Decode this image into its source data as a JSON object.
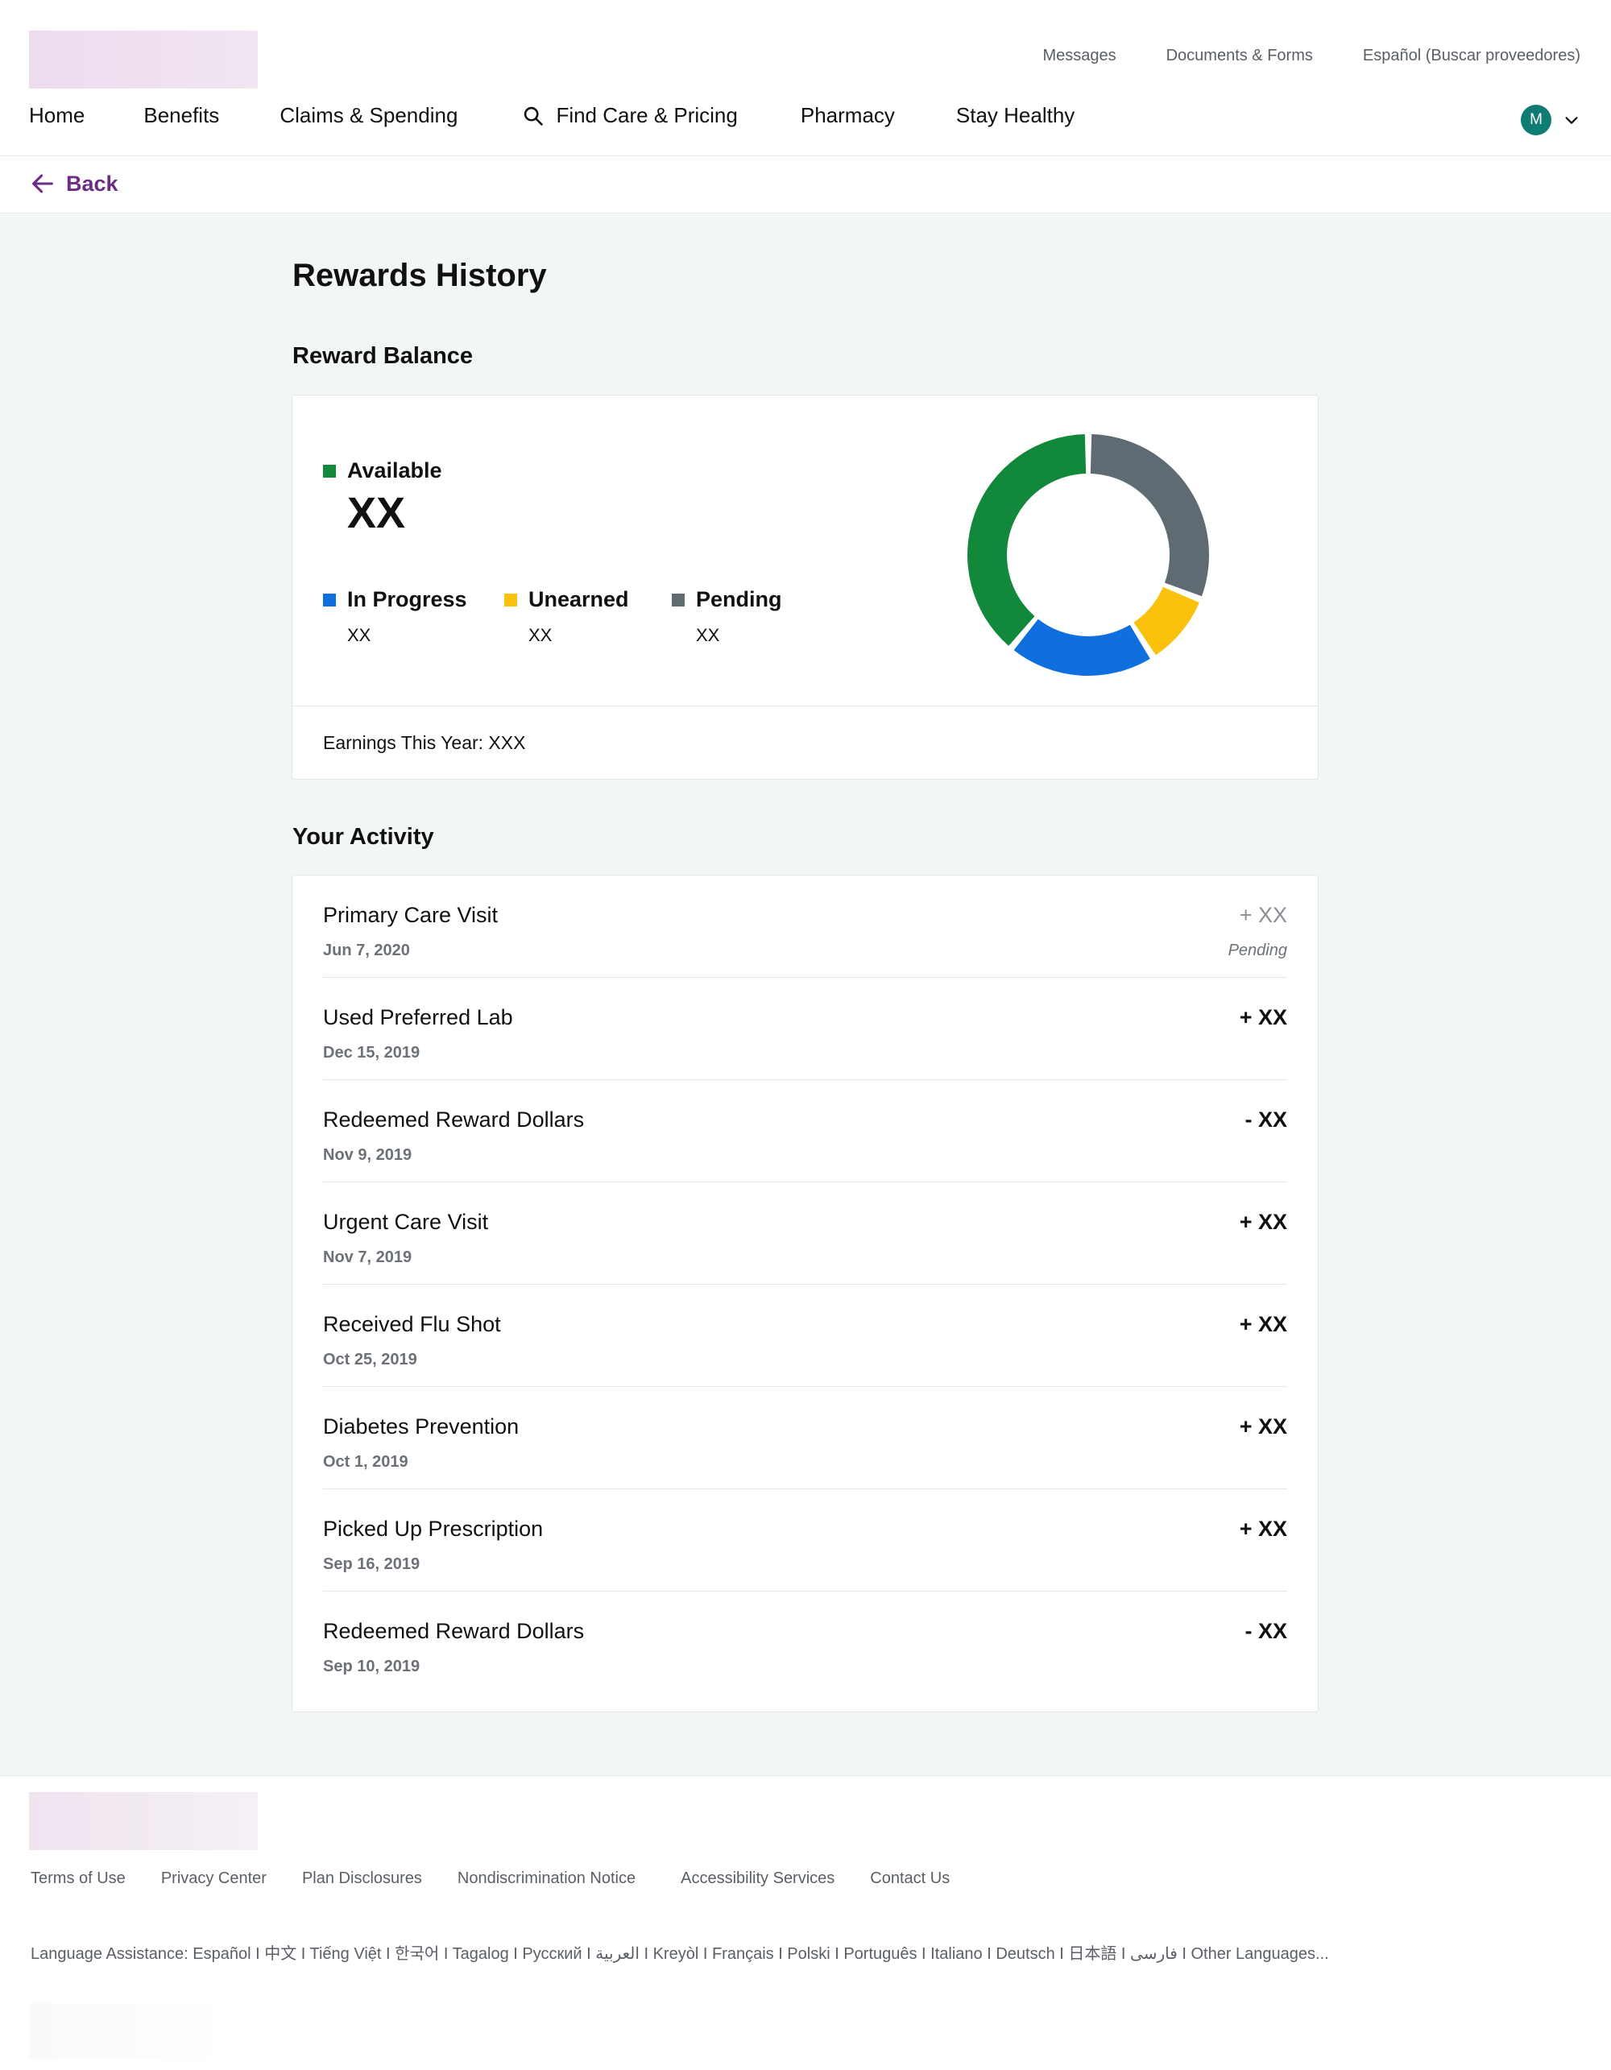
{
  "header": {
    "utility_links": [
      "Messages",
      "Documents & Forms",
      "Español (Buscar proveedores)"
    ],
    "nav": {
      "home": "Home",
      "benefits": "Benefits",
      "claims": "Claims & Spending",
      "find_care": "Find Care & Pricing",
      "pharmacy": "Pharmacy",
      "stay_healthy": "Stay Healthy"
    },
    "avatar_initial": "M"
  },
  "back_label": "Back",
  "page_title": "Rewards History",
  "balance": {
    "section_title": "Reward Balance",
    "available_label": "Available",
    "available_value": "XX",
    "in_progress_label": "In Progress",
    "in_progress_value": "XX",
    "unearned_label": "Unearned",
    "unearned_value": "XX",
    "pending_label": "Pending",
    "pending_value": "XX",
    "earnings": "Earnings This Year: XXX"
  },
  "colors": {
    "available": "#12883a",
    "in_progress": "#0f6fde",
    "unearned": "#fbc20d",
    "pending": "#5f6b72",
    "brand_purple": "#6b2d87",
    "avatar": "#0f7c74"
  },
  "donut_segments": [
    {
      "name": "Pending",
      "fraction": 0.31,
      "color": "#5f6b72"
    },
    {
      "name": "Unearned",
      "fraction": 0.1,
      "color": "#fbc20d"
    },
    {
      "name": "In Progress",
      "fraction": 0.2,
      "color": "#0f6fde"
    },
    {
      "name": "Available",
      "fraction": 0.39,
      "color": "#12883a"
    }
  ],
  "activity": {
    "section_title": "Your Activity",
    "items": [
      {
        "title": "Primary Care Visit",
        "date": "Jun 7, 2020",
        "amount": "+ XX",
        "status": "Pending"
      },
      {
        "title": "Used Preferred Lab",
        "date": "Dec 15, 2019",
        "amount": "+ XX"
      },
      {
        "title": "Redeemed Reward Dollars",
        "date": "Nov 9, 2019",
        "amount": "- XX"
      },
      {
        "title": "Urgent Care Visit",
        "date": "Nov 7, 2019",
        "amount": "+ XX"
      },
      {
        "title": "Received Flu Shot",
        "date": "Oct 25, 2019",
        "amount": "+ XX"
      },
      {
        "title": "Diabetes Prevention",
        "date": "Oct 1, 2019",
        "amount": "+ XX"
      },
      {
        "title": "Picked Up Prescription",
        "date": "Sep 16, 2019",
        "amount": "+ XX"
      },
      {
        "title": "Redeemed Reward Dollars",
        "date": "Sep 10, 2019",
        "amount": "- XX"
      }
    ]
  },
  "footer": {
    "links": [
      "Terms of Use",
      "Privacy Center",
      "Plan Disclosures",
      "Nondiscrimination Notice",
      "Accessibility Services",
      "Contact Us"
    ],
    "language_assistance": "Language Assistance: Español I 中文 I Tiếng Việt I 한국어 I Tagalog I Русский I العربية I Kreyòl I Français I Polski I Português I Italiano I Deutsch I 日本語 I فارسی I Other Languages..."
  }
}
